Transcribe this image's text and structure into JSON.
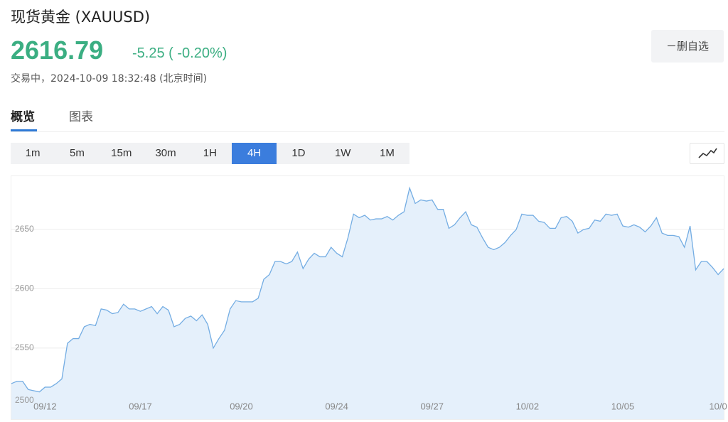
{
  "header": {
    "title": "现货黄金 (XAUUSD)",
    "price": "2616.79",
    "change": "-5.25 ( -0.20%)",
    "status": "交易中，2024-10-09 18:32:48 (北京时间)",
    "button": "－删自选"
  },
  "tabs": [
    "概览",
    "图表"
  ],
  "timeframes": [
    "1m",
    "5m",
    "15m",
    "30m",
    "1H",
    "4H",
    "1D",
    "1W",
    "1M"
  ],
  "chart_data": {
    "type": "area",
    "color": "#74ade3",
    "fill": "#e5f0fb",
    "grid": true,
    "ylim": [
      2490,
      2695
    ],
    "yticks": [
      2500,
      2550,
      2600,
      2650
    ],
    "categories": [
      null,
      null,
      null,
      null,
      null,
      null,
      "09/12",
      null,
      null,
      null,
      null,
      null,
      null,
      null,
      null,
      null,
      null,
      null,
      null,
      null,
      null,
      null,
      null,
      "09/17",
      null,
      null,
      null,
      null,
      null,
      null,
      null,
      null,
      null,
      null,
      null,
      null,
      null,
      null,
      null,
      null,
      null,
      "09/20",
      null,
      null,
      null,
      null,
      null,
      null,
      null,
      null,
      null,
      null,
      null,
      null,
      null,
      null,
      null,
      null,
      "09/24",
      null,
      null,
      null,
      null,
      null,
      null,
      null,
      null,
      null,
      null,
      null,
      null,
      null,
      null,
      null,
      null,
      "09/27",
      null,
      null,
      null,
      null,
      null,
      null,
      null,
      null,
      null,
      null,
      null,
      null,
      null,
      null,
      null,
      null,
      "10/02",
      null,
      null,
      null,
      null,
      null,
      null,
      null,
      null,
      null,
      null,
      null,
      null,
      null,
      null,
      null,
      null,
      "10/05",
      null,
      null,
      null,
      null,
      null,
      null,
      null,
      null,
      null,
      null,
      null,
      null,
      null,
      null,
      null,
      null,
      "10/0",
      null
    ],
    "values": [
      2520,
      2522,
      2522,
      2515,
      2514,
      2513,
      2517,
      2517,
      2520,
      2524,
      2554,
      2558,
      2558,
      2568,
      2570,
      2569,
      2583,
      2582,
      2579,
      2580,
      2587,
      2583,
      2583,
      2581,
      2583,
      2585,
      2579,
      2585,
      2582,
      2568,
      2570,
      2575,
      2577,
      2573,
      2578,
      2570,
      2550,
      2558,
      2565,
      2583,
      2590,
      2589,
      2589,
      2589,
      2592,
      2608,
      2612,
      2623,
      2623,
      2621,
      2623,
      2631,
      2617,
      2625,
      2630,
      2627,
      2627,
      2635,
      2630,
      2627,
      2643,
      2663,
      2660,
      2662,
      2658,
      2659,
      2659,
      2661,
      2658,
      2662,
      2665,
      2685,
      2672,
      2675,
      2674,
      2675,
      2667,
      2667,
      2651,
      2654,
      2660,
      2665,
      2654,
      2652,
      2643,
      2635,
      2633,
      2635,
      2639,
      2645,
      2650,
      2663,
      2662,
      2662,
      2657,
      2656,
      2651,
      2651,
      2660,
      2661,
      2657,
      2647,
      2650,
      2651,
      2658,
      2657,
      2663,
      2662,
      2663,
      2653,
      2652,
      2654,
      2652,
      2648,
      2653,
      2660,
      2647,
      2645,
      2645,
      2644,
      2635,
      2653,
      2616,
      2623,
      2623,
      2618,
      2612,
      2617
    ]
  }
}
